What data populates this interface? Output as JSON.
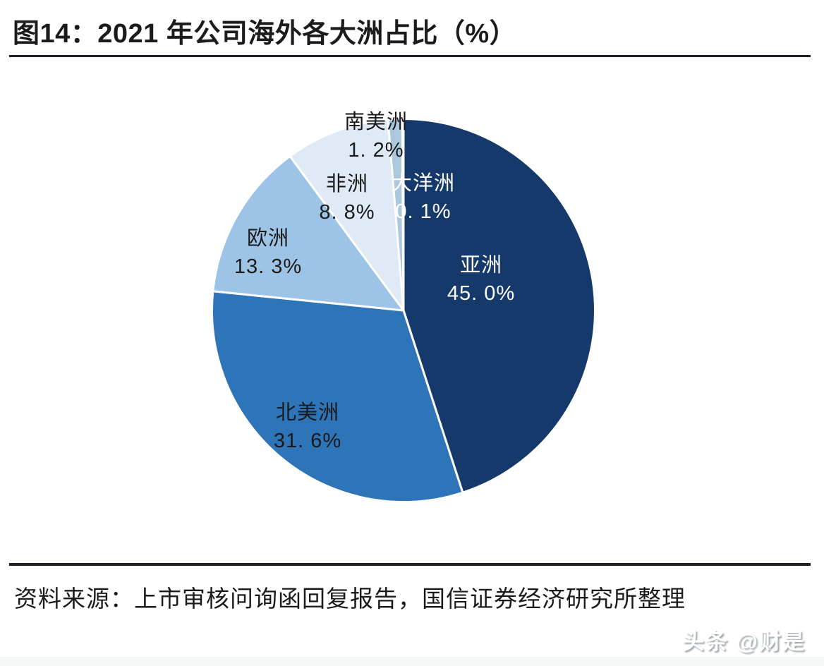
{
  "figure": {
    "title": "图14：2021 年公司海外各大洲占比（%）",
    "source": "资料来源：上市审核问询函回复报告，国信证券经济研究所整理",
    "watermark": "头条 @财是"
  },
  "chart_data": {
    "type": "pie",
    "title": "2021 年公司海外各大洲占比（%）",
    "unit": "%",
    "start_angle_deg": -90,
    "direction": "clockwise",
    "legend": "none",
    "separator_color": "#FFFFFF",
    "background_color": "#FFFFFF",
    "categories": [
      "亚洲",
      "北美洲",
      "欧洲",
      "非洲",
      "南美洲",
      "大洋洲"
    ],
    "values": [
      45.0,
      31.6,
      13.3,
      8.8,
      1.2,
      0.1
    ],
    "slices": [
      {
        "id": "asia",
        "label": "亚洲",
        "value": 45.0,
        "display": "45. 0%",
        "color": "#15396B",
        "label_color": "#FFFFFF"
      },
      {
        "id": "north-america",
        "label": "北美洲",
        "value": 31.6,
        "display": "31. 6%",
        "color": "#2E74B8",
        "label_color": "#1A1A1A"
      },
      {
        "id": "europe",
        "label": "欧洲",
        "value": 13.3,
        "display": "13. 3%",
        "color": "#9DC3E6",
        "label_color": "#1A1A1A"
      },
      {
        "id": "africa",
        "label": "非洲",
        "value": 8.8,
        "display": "8. 8%",
        "color": "#DFEAF6",
        "label_color": "#1A1A1A"
      },
      {
        "id": "south-america",
        "label": "南美洲",
        "value": 1.2,
        "display": "1. 2%",
        "color": "#ACC8DC",
        "label_color": "#1A1A1A"
      },
      {
        "id": "oceania",
        "label": "大洋洲",
        "value": 0.1,
        "display": "0. 1%",
        "color": "#7FA8CC",
        "label_color": "#FFFFFF"
      }
    ]
  }
}
